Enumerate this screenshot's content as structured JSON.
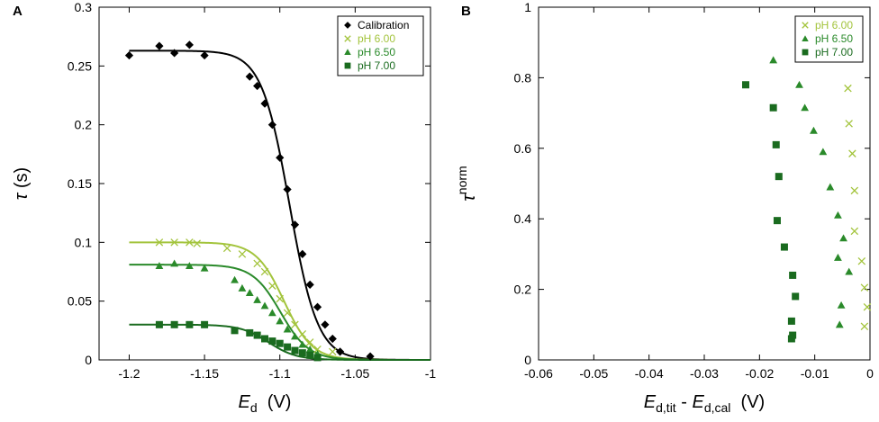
{
  "colors": {
    "calibration": "#000000",
    "ph600": "#a3c43c",
    "ph650": "#2a8a2a",
    "ph700": "#1a6b1f"
  },
  "chart_data": [
    {
      "panel_letter": "A",
      "type": "scatter",
      "xlim": [
        -1.22,
        -1.0
      ],
      "ylim": [
        0,
        0.3
      ],
      "xticks": [
        -1.2,
        -1.15,
        -1.1,
        -1.05,
        -1.0
      ],
      "xtick_labels": [
        "-1.2",
        "-1.15",
        "-1.1",
        "-1.05",
        "-1"
      ],
      "yticks": [
        0,
        0.05,
        0.1,
        0.15,
        0.2,
        0.25,
        0.3
      ],
      "ytick_labels": [
        "0",
        "0.05",
        "0.1",
        "0.15",
        "0.2",
        "0.25",
        "0.3"
      ],
      "xlabel": {
        "main": "E",
        "sub": "d",
        "unit": "(V)"
      },
      "ylabel": {
        "main": "τ",
        "unit": "(s)"
      },
      "legend_position": "top-right",
      "series": [
        {
          "name": "Calibration",
          "marker": "diamond",
          "color_key": "calibration",
          "points": [
            [
              -1.2,
              0.259
            ],
            [
              -1.18,
              0.267
            ],
            [
              -1.17,
              0.261
            ],
            [
              -1.16,
              0.268
            ],
            [
              -1.15,
              0.259
            ],
            [
              -1.12,
              0.241
            ],
            [
              -1.115,
              0.233
            ],
            [
              -1.11,
              0.218
            ],
            [
              -1.105,
              0.2
            ],
            [
              -1.1,
              0.172
            ],
            [
              -1.095,
              0.145
            ],
            [
              -1.09,
              0.115
            ],
            [
              -1.085,
              0.09
            ],
            [
              -1.08,
              0.064
            ],
            [
              -1.075,
              0.045
            ],
            [
              -1.07,
              0.03
            ],
            [
              -1.065,
              0.018
            ],
            [
              -1.06,
              0.007
            ],
            [
              -1.04,
              0.003
            ]
          ],
          "fit": {
            "plateau": 0.263,
            "e_half": -1.0935,
            "slope": 0.0093
          }
        },
        {
          "name": "pH 6.00",
          "marker": "x",
          "color_key": "ph600",
          "points": [
            [
              -1.18,
              0.1
            ],
            [
              -1.17,
              0.1
            ],
            [
              -1.16,
              0.1
            ],
            [
              -1.155,
              0.099
            ],
            [
              -1.135,
              0.095
            ],
            [
              -1.125,
              0.09
            ],
            [
              -1.115,
              0.082
            ],
            [
              -1.11,
              0.075
            ],
            [
              -1.105,
              0.063
            ],
            [
              -1.1,
              0.052
            ],
            [
              -1.095,
              0.04
            ],
            [
              -1.09,
              0.03
            ],
            [
              -1.085,
              0.022
            ],
            [
              -1.08,
              0.015
            ],
            [
              -1.075,
              0.009
            ],
            [
              -1.065,
              0.007
            ]
          ],
          "fit": {
            "plateau": 0.1,
            "e_half": -1.0972,
            "slope": 0.0093
          }
        },
        {
          "name": "pH 6.50",
          "marker": "triangle",
          "color_key": "ph650",
          "points": [
            [
              -1.18,
              0.08
            ],
            [
              -1.17,
              0.082
            ],
            [
              -1.16,
              0.08
            ],
            [
              -1.15,
              0.078
            ],
            [
              -1.13,
              0.068
            ],
            [
              -1.125,
              0.061
            ],
            [
              -1.12,
              0.057
            ],
            [
              -1.115,
              0.051
            ],
            [
              -1.11,
              0.046
            ],
            [
              -1.105,
              0.04
            ],
            [
              -1.1,
              0.033
            ],
            [
              -1.095,
              0.026
            ],
            [
              -1.09,
              0.02
            ],
            [
              -1.085,
              0.013
            ],
            [
              -1.08,
              0.009
            ],
            [
              -1.075,
              0.005
            ]
          ],
          "fit": {
            "plateau": 0.081,
            "e_half": -1.0995,
            "slope": 0.0093
          }
        },
        {
          "name": "pH 7.00",
          "marker": "square",
          "color_key": "ph700",
          "points": [
            [
              -1.18,
              0.03
            ],
            [
              -1.17,
              0.03
            ],
            [
              -1.16,
              0.03
            ],
            [
              -1.15,
              0.03
            ],
            [
              -1.13,
              0.025
            ],
            [
              -1.12,
              0.023
            ],
            [
              -1.115,
              0.021
            ],
            [
              -1.11,
              0.018
            ],
            [
              -1.105,
              0.016
            ],
            [
              -1.1,
              0.014
            ],
            [
              -1.095,
              0.011
            ],
            [
              -1.09,
              0.008
            ],
            [
              -1.085,
              0.006
            ],
            [
              -1.08,
              0.004
            ],
            [
              -1.075,
              0.002
            ]
          ],
          "fit": {
            "plateau": 0.03,
            "e_half": -1.1075,
            "slope": 0.0093
          }
        }
      ]
    },
    {
      "panel_letter": "B",
      "type": "scatter",
      "xlim": [
        -0.06,
        0
      ],
      "ylim": [
        0,
        1
      ],
      "xticks": [
        -0.06,
        -0.05,
        -0.04,
        -0.03,
        -0.02,
        -0.01,
        0
      ],
      "xtick_labels": [
        "-0.06",
        "-0.05",
        "-0.04",
        "-0.03",
        "-0.02",
        "-0.01",
        "0"
      ],
      "yticks": [
        0,
        0.2,
        0.4,
        0.6,
        0.8,
        1
      ],
      "ytick_labels": [
        "0",
        "0.2",
        "0.4",
        "0.6",
        "0.8",
        "1"
      ],
      "xlabel": {
        "term1": "E",
        "sub1": "d,tit",
        "minus": "-",
        "term2": "E",
        "sub2": "d,cal",
        "unit": "(V)"
      },
      "ylabel": {
        "main": "τ",
        "sup": "norm"
      },
      "legend_position": "top-right",
      "series": [
        {
          "name": "pH 6.00",
          "marker": "x",
          "color_key": "ph600",
          "points": [
            [
              -0.004,
              0.77
            ],
            [
              -0.0038,
              0.67
            ],
            [
              -0.0032,
              0.585
            ],
            [
              -0.0028,
              0.48
            ],
            [
              -0.0028,
              0.365
            ],
            [
              -0.0015,
              0.28
            ],
            [
              -0.001,
              0.205
            ],
            [
              -0.0005,
              0.15
            ],
            [
              -0.001,
              0.095
            ]
          ]
        },
        {
          "name": "pH 6.50",
          "marker": "triangle",
          "color_key": "ph650",
          "points": [
            [
              -0.0175,
              0.85
            ],
            [
              -0.0128,
              0.78
            ],
            [
              -0.0118,
              0.715
            ],
            [
              -0.0102,
              0.65
            ],
            [
              -0.0085,
              0.59
            ],
            [
              -0.0072,
              0.49
            ],
            [
              -0.0058,
              0.41
            ],
            [
              -0.0048,
              0.345
            ],
            [
              -0.0058,
              0.29
            ],
            [
              -0.0038,
              0.25
            ],
            [
              -0.0052,
              0.155
            ],
            [
              -0.0055,
              0.1
            ]
          ]
        },
        {
          "name": "pH 7.00",
          "marker": "square",
          "color_key": "ph700",
          "points": [
            [
              -0.0225,
              0.78
            ],
            [
              -0.0175,
              0.715
            ],
            [
              -0.017,
              0.61
            ],
            [
              -0.0165,
              0.52
            ],
            [
              -0.0168,
              0.395
            ],
            [
              -0.0155,
              0.32
            ],
            [
              -0.014,
              0.24
            ],
            [
              -0.0135,
              0.18
            ],
            [
              -0.0142,
              0.11
            ],
            [
              -0.014,
              0.07
            ],
            [
              -0.0142,
              0.06
            ]
          ]
        }
      ]
    }
  ]
}
